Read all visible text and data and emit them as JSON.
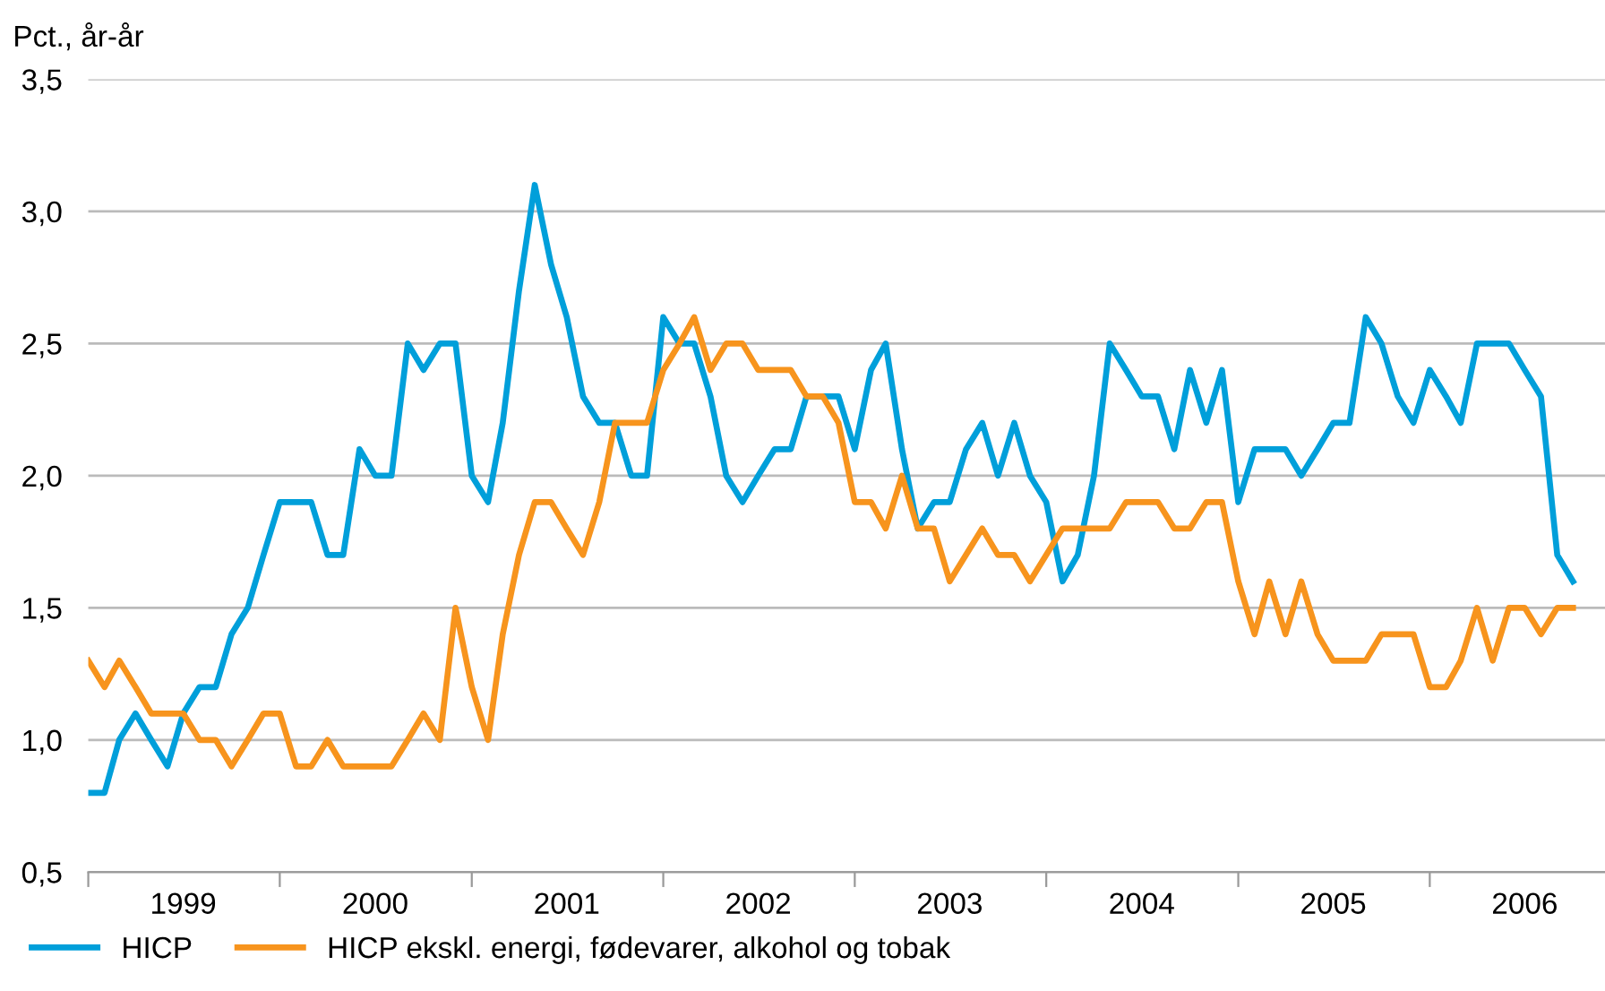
{
  "chart_data": {
    "type": "line",
    "ylabel": "Pct., år-år",
    "x": [
      "1999-01",
      "1999-02",
      "1999-03",
      "1999-04",
      "1999-05",
      "1999-06",
      "1999-07",
      "1999-08",
      "1999-09",
      "1999-10",
      "1999-11",
      "1999-12",
      "2000-01",
      "2000-02",
      "2000-03",
      "2000-04",
      "2000-05",
      "2000-06",
      "2000-07",
      "2000-08",
      "2000-09",
      "2000-10",
      "2000-11",
      "2000-12",
      "2001-01",
      "2001-02",
      "2001-03",
      "2001-04",
      "2001-05",
      "2001-06",
      "2001-07",
      "2001-08",
      "2001-09",
      "2001-10",
      "2001-11",
      "2001-12",
      "2002-01",
      "2002-02",
      "2002-03",
      "2002-04",
      "2002-05",
      "2002-06",
      "2002-07",
      "2002-08",
      "2002-09",
      "2002-10",
      "2002-11",
      "2002-12",
      "2003-01",
      "2003-02",
      "2003-03",
      "2003-04",
      "2003-05",
      "2003-06",
      "2003-07",
      "2003-08",
      "2003-09",
      "2003-10",
      "2003-11",
      "2003-12",
      "2004-01",
      "2004-02",
      "2004-03",
      "2004-04",
      "2004-05",
      "2004-06",
      "2004-07",
      "2004-08",
      "2004-09",
      "2004-10",
      "2004-11",
      "2004-12",
      "2005-01",
      "2005-02",
      "2005-03",
      "2005-04",
      "2005-05",
      "2005-06",
      "2005-07",
      "2005-08",
      "2005-09",
      "2005-10",
      "2005-11",
      "2005-12",
      "2006-01",
      "2006-02",
      "2006-03",
      "2006-04",
      "2006-05",
      "2006-06",
      "2006-07",
      "2006-08",
      "2006-09",
      "2006-10"
    ],
    "series": [
      {
        "name": "HICP",
        "color": "#009fda",
        "values": [
          0.8,
          0.8,
          1.0,
          1.1,
          1.0,
          0.9,
          1.1,
          1.2,
          1.2,
          1.4,
          1.5,
          1.7,
          1.9,
          1.9,
          1.9,
          1.7,
          1.7,
          2.1,
          2.0,
          2.0,
          2.5,
          2.4,
          2.5,
          2.5,
          2.0,
          1.9,
          2.2,
          2.7,
          3.1,
          2.8,
          2.6,
          2.3,
          2.2,
          2.2,
          2.0,
          2.0,
          2.6,
          2.5,
          2.5,
          2.3,
          2.0,
          1.9,
          2.0,
          2.1,
          2.1,
          2.3,
          2.3,
          2.3,
          2.1,
          2.4,
          2.5,
          2.1,
          1.8,
          1.9,
          1.9,
          2.1,
          2.2,
          2.0,
          2.2,
          2.0,
          1.9,
          1.6,
          1.7,
          2.0,
          2.5,
          2.4,
          2.3,
          2.3,
          2.1,
          2.4,
          2.2,
          2.4,
          1.9,
          2.1,
          2.1,
          2.1,
          2.0,
          2.1,
          2.2,
          2.2,
          2.6,
          2.5,
          2.3,
          2.2,
          2.4,
          2.3,
          2.2,
          2.5,
          2.5,
          2.5,
          2.4,
          2.3,
          1.7,
          1.6
        ]
      },
      {
        "name": "HICP ekskl. energi, fødevarer, alkohol og tobak",
        "color": "#f7941d",
        "values": [
          1.3,
          1.2,
          1.3,
          1.2,
          1.1,
          1.1,
          1.1,
          1.0,
          1.0,
          0.9,
          1.0,
          1.1,
          1.1,
          0.9,
          0.9,
          1.0,
          0.9,
          0.9,
          0.9,
          0.9,
          1.0,
          1.1,
          1.0,
          1.5,
          1.2,
          1.0,
          1.4,
          1.7,
          1.9,
          1.9,
          1.8,
          1.7,
          1.9,
          2.2,
          2.2,
          2.2,
          2.4,
          2.5,
          2.6,
          2.4,
          2.5,
          2.5,
          2.4,
          2.4,
          2.4,
          2.3,
          2.3,
          2.2,
          1.9,
          1.9,
          1.8,
          2.0,
          1.8,
          1.8,
          1.6,
          1.7,
          1.8,
          1.7,
          1.7,
          1.6,
          1.7,
          1.8,
          1.8,
          1.8,
          1.8,
          1.9,
          1.9,
          1.9,
          1.8,
          1.8,
          1.9,
          1.9,
          1.6,
          1.4,
          1.6,
          1.4,
          1.6,
          1.4,
          1.3,
          1.3,
          1.3,
          1.4,
          1.4,
          1.4,
          1.2,
          1.2,
          1.3,
          1.5,
          1.3,
          1.5,
          1.5,
          1.4,
          1.5,
          1.5
        ]
      }
    ],
    "xlim": [
      "1999-01",
      "2006-12"
    ],
    "xticks": [
      {
        "value": "1999",
        "label": null
      },
      {
        "value": "1999-07",
        "label": "1999"
      },
      {
        "value": "2000",
        "label": null
      },
      {
        "value": "2000-07",
        "label": "2000"
      },
      {
        "value": "2001",
        "label": null
      },
      {
        "value": "2001-07",
        "label": "2001"
      },
      {
        "value": "2002",
        "label": null
      },
      {
        "value": "2002-07",
        "label": "2002"
      },
      {
        "value": "2003",
        "label": null
      },
      {
        "value": "2003-07",
        "label": "2003"
      },
      {
        "value": "2004",
        "label": null
      },
      {
        "value": "2004-07",
        "label": "2004"
      },
      {
        "value": "2005",
        "label": null
      },
      {
        "value": "2005-07",
        "label": "2005"
      },
      {
        "value": "2006",
        "label": null
      },
      {
        "value": "2006-07",
        "label": "2006"
      }
    ],
    "ylim": [
      0.5,
      3.5
    ],
    "yticks": [
      {
        "value": 0.5,
        "label": "0,5"
      },
      {
        "value": 1.0,
        "label": "1,0"
      },
      {
        "value": 1.5,
        "label": "1,5"
      },
      {
        "value": 2.0,
        "label": "2,0"
      },
      {
        "value": 2.5,
        "label": "2,5"
      },
      {
        "value": 3.0,
        "label": "3,0"
      },
      {
        "value": 3.5,
        "label": "3,5"
      }
    ],
    "grid": "y",
    "legend": "bottom",
    "marker": "none",
    "line_style": "solid"
  }
}
